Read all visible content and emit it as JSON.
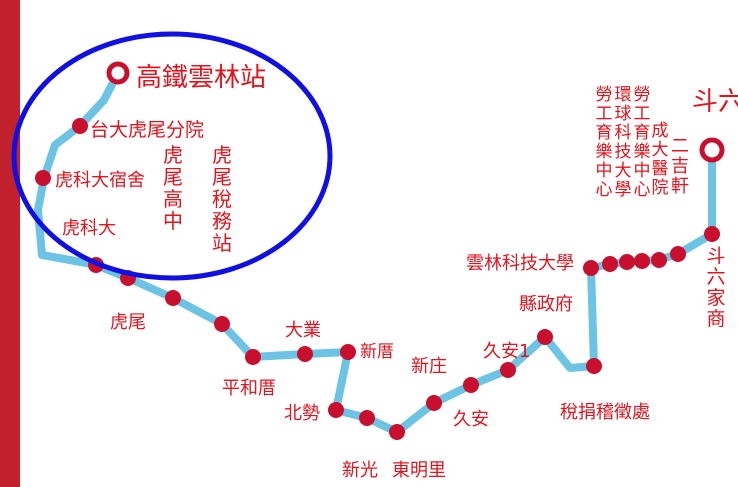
{
  "colors": {
    "route": "#6cc3e4",
    "stop": "#c8102e",
    "label": "#e0141e",
    "left_band": "#c0212d",
    "highlight_circle": "#1010e0"
  },
  "highlight_circle": {
    "visible": true
  },
  "terminals": {
    "start": "高鐵雲林站",
    "end": "斗六"
  },
  "stops": [
    {
      "id": "s1",
      "name": "台大虎尾分院"
    },
    {
      "id": "s2",
      "name": "虎科大宿舍"
    },
    {
      "id": "s3",
      "name": "虎科大"
    },
    {
      "id": "s4",
      "name": ""
    },
    {
      "id": "s5",
      "name": "虎尾"
    },
    {
      "id": "s6",
      "name": "虎尾高中"
    },
    {
      "id": "s7",
      "name": "虎尾稅務站"
    },
    {
      "id": "s8",
      "name": "平和厝"
    },
    {
      "id": "s9",
      "name": "大業"
    },
    {
      "id": "s10",
      "name": "新厝"
    },
    {
      "id": "s11",
      "name": "北勢"
    },
    {
      "id": "s12",
      "name": "新光"
    },
    {
      "id": "s13",
      "name": "東明里"
    },
    {
      "id": "s14",
      "name": "新庄"
    },
    {
      "id": "s15",
      "name": "久安"
    },
    {
      "id": "s16",
      "name": "久安1"
    },
    {
      "id": "s17",
      "name": "縣政府"
    },
    {
      "id": "s18",
      "name": "稅捐稽徵處"
    },
    {
      "id": "s19",
      "name": "雲林科技大學"
    },
    {
      "id": "s20",
      "name": "勞工育樂中心"
    },
    {
      "id": "s21",
      "name": "環球科技大學"
    },
    {
      "id": "s22",
      "name": "勞工育樂中心"
    },
    {
      "id": "s23",
      "name": "成大醫院"
    },
    {
      "id": "s24",
      "name": "二吉軒"
    },
    {
      "id": "s25",
      "name": "斗六家商"
    }
  ]
}
